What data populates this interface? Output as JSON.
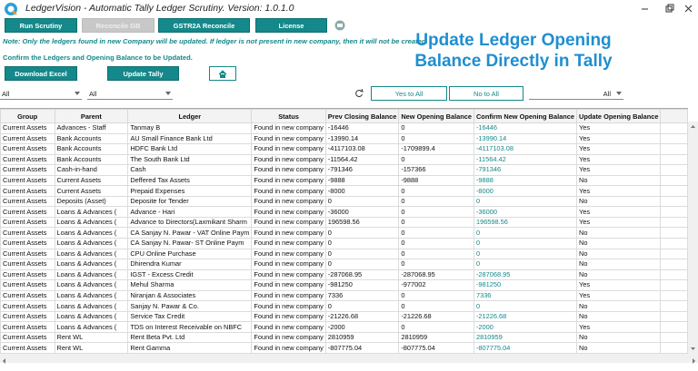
{
  "window": {
    "title": "LedgerVision - Automatic Tally Ledger Scrutiny.  Version: 1.0.1.0"
  },
  "toolbar": {
    "buttons": [
      "Run Scrutiny",
      "Reconcile GB",
      "GSTR2A Reconcile",
      "License"
    ]
  },
  "note": "Note: Only the ledgers found in new Company will be updated. If ledger is not present in new company, then it will not be created.",
  "instruction": "Confirm the Ledgers and Opening Balance to be Updated.",
  "heading": "Update Ledger Opening Balance Directly in Tally",
  "actions": [
    "Download Excel",
    "Update Tally"
  ],
  "filters": {
    "group": "All",
    "parent": "All",
    "update": "All",
    "yes_all": "Yes to All",
    "no_all": "No to All"
  },
  "table": {
    "columns": [
      "Group",
      "Parent",
      "Ledger",
      "Status",
      "Prev Closing Balance",
      "New Opening Balance",
      "Confirm New Opening Balance",
      "Update Opening Balance"
    ],
    "rows": [
      [
        "Current Assets",
        "Advances - Staff",
        "Tanmay B",
        "Found in new company",
        "-16446",
        "0",
        "-16446",
        "Yes"
      ],
      [
        "Current Assets",
        "Bank Accounts",
        "AU Small Finance Bank Ltd",
        "Found in new company",
        "-13990.14",
        "0",
        "-13990.14",
        "Yes"
      ],
      [
        "Current Assets",
        "Bank Accounts",
        "HDFC Bank Ltd",
        "Found in new company",
        "-4117103.08",
        "-1709899.4",
        "-4117103.08",
        "Yes"
      ],
      [
        "Current Assets",
        "Bank Accounts",
        "The South Bank Ltd",
        "Found in new company",
        "-11564.42",
        "0",
        "-11564.42",
        "Yes"
      ],
      [
        "Current Assets",
        "Cash-in-hand",
        "Cash",
        "Found in new company",
        "-791346",
        "-157366",
        "-791346",
        "Yes"
      ],
      [
        "Current Assets",
        "Current Assets",
        "Deffered Tax Assets",
        "Found in new company",
        "-9888",
        "-9888",
        "-9888",
        "No"
      ],
      [
        "Current Assets",
        "Current Assets",
        "Prepaid Expenses",
        "Found in new company",
        "-8000",
        "0",
        "-8000",
        "Yes"
      ],
      [
        "Current Assets",
        "Deposits (Asset)",
        "Deposite for Tender",
        "Found in new company",
        "0",
        "0",
        "0",
        "No"
      ],
      [
        "Current Assets",
        "Loans & Advances (",
        "Advance - Hari",
        "Found in new company",
        "-36000",
        "0",
        "-36000",
        "Yes"
      ],
      [
        "Current Assets",
        "Loans & Advances (",
        "Advance to Directors(Laxmikant Sharm",
        "Found in new company",
        "196598.56",
        "0",
        "196598.56",
        "Yes"
      ],
      [
        "Current Assets",
        "Loans & Advances (",
        "CA Sanjay N. Pawar - VAT Online Paym",
        "Found in new company",
        "0",
        "0",
        "0",
        "No"
      ],
      [
        "Current Assets",
        "Loans & Advances (",
        "CA Sanjay N. Pawar- ST  Online Paym",
        "Found in new company",
        "0",
        "0",
        "0",
        "No"
      ],
      [
        "Current Assets",
        "Loans & Advances (",
        "CPU Online Purchase",
        "Found in new company",
        "0",
        "0",
        "0",
        "No"
      ],
      [
        "Current Assets",
        "Loans & Advances (",
        "Dhirendra Kumar",
        "Found in new company",
        "0",
        "0",
        "0",
        "No"
      ],
      [
        "Current Assets",
        "Loans & Advances (",
        "IGST - Excess Credit",
        "Found in new company",
        "-287068.95",
        "-287068.95",
        "-287068.95",
        "No"
      ],
      [
        "Current Assets",
        "Loans & Advances (",
        "Mehul Sharma",
        "Found in new company",
        "-981250",
        "-977002",
        "-981250",
        "Yes"
      ],
      [
        "Current Assets",
        "Loans & Advances (",
        "Niranjan & Associates",
        "Found in new company",
        "7336",
        "0",
        "7336",
        "Yes"
      ],
      [
        "Current Assets",
        "Loans & Advances (",
        "Sanjay N. Pawar & Co.",
        "Found in new company",
        "0",
        "0",
        "0",
        "No"
      ],
      [
        "Current Assets",
        "Loans & Advances (",
        "Service Tax Credit",
        "Found in new company",
        "-21226.68",
        "-21226.68",
        "-21226.68",
        "No"
      ],
      [
        "Current Assets",
        "Loans & Advances (",
        "TDS on Interest Receivable on NBFC",
        "Found in new company",
        "-2000",
        "0",
        "-2000",
        "Yes"
      ],
      [
        "Current Assets",
        "Rent WL",
        "Rent Beta Pvt. Ltd",
        "Found in new company",
        "2810959",
        "2810959",
        "2810959",
        "No"
      ],
      [
        "Current Assets",
        "Rent WL",
        "Rent Gamma",
        "Found in new company",
        "-807775.04",
        "-807775.04",
        "-807775.04",
        "No"
      ]
    ]
  }
}
